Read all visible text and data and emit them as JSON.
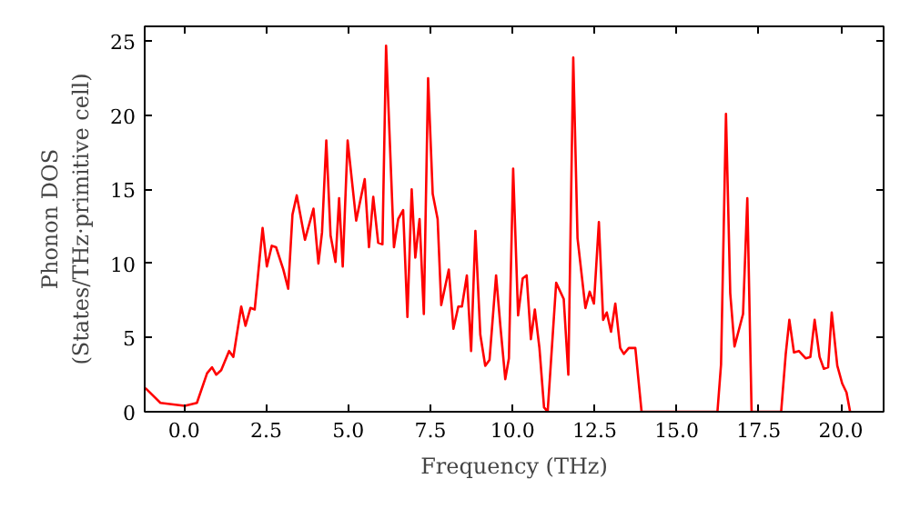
{
  "chart_data": {
    "type": "line",
    "xlabel": "Frequency (THz)",
    "ylabel": "Phonon DOS\n(States/THz·primitive cell)",
    "xlim": [
      -1.2,
      21.3
    ],
    "ylim": [
      0,
      26
    ],
    "xticks": [
      {
        "value": 0,
        "label": "0.0"
      },
      {
        "value": 2.5,
        "label": "2.5"
      },
      {
        "value": 5,
        "label": "5.0"
      },
      {
        "value": 7.5,
        "label": "7.5"
      },
      {
        "value": 10,
        "label": "10.0"
      },
      {
        "value": 12.5,
        "label": "12.5"
      },
      {
        "value": 15,
        "label": "15.0"
      },
      {
        "value": 17.5,
        "label": "17.5"
      },
      {
        "value": 20,
        "label": "20.0"
      }
    ],
    "yticks": [
      0,
      5,
      10,
      15,
      20,
      25
    ],
    "grid": false,
    "marker": "none",
    "line_style": "solid",
    "series": [
      {
        "color": "#ff0000",
        "x": [
          -1.18,
          -0.72,
          0.02,
          0.39,
          0.7,
          0.85,
          0.98,
          1.13,
          1.37,
          1.5,
          1.74,
          1.87,
          2.02,
          2.15,
          2.39,
          2.52,
          2.67,
          2.8,
          3.02,
          3.17,
          3.3,
          3.43,
          3.68,
          3.94,
          4.09,
          4.2,
          4.33,
          4.46,
          4.61,
          4.72,
          4.83,
          4.98,
          5.24,
          5.5,
          5.63,
          5.76,
          5.91,
          6.04,
          6.15,
          6.39,
          6.52,
          6.67,
          6.8,
          6.93,
          7.04,
          7.17,
          7.3,
          7.43,
          7.57,
          7.72,
          7.83,
          8.06,
          8.2,
          8.35,
          8.46,
          8.61,
          8.74,
          8.87,
          9.02,
          9.17,
          9.3,
          9.5,
          9.63,
          9.78,
          9.89,
          10.02,
          10.17,
          10.31,
          10.43,
          10.56,
          10.68,
          10.82,
          10.96,
          11.07,
          11.33,
          11.56,
          11.7,
          11.85,
          11.98,
          12.22,
          12.35,
          12.48,
          12.63,
          12.76,
          12.87,
          13.0,
          13.13,
          13.28,
          13.39,
          13.54,
          13.74,
          13.93,
          16.24,
          16.35,
          16.5,
          16.63,
          16.76,
          17.02,
          17.15,
          17.28,
          18.18,
          18.32,
          18.43,
          18.57,
          18.72,
          18.93,
          19.07,
          19.2,
          19.35,
          19.48,
          19.61,
          19.72,
          19.89,
          20.04,
          20.17,
          20.28
        ],
        "values": [
          1.6,
          0.6,
          0.4,
          0.6,
          2.6,
          3.0,
          2.5,
          2.8,
          4.1,
          3.7,
          7.1,
          5.8,
          7.0,
          6.9,
          12.4,
          9.8,
          11.2,
          11.1,
          9.6,
          8.3,
          13.3,
          14.6,
          11.6,
          13.7,
          10.0,
          12.1,
          18.3,
          11.9,
          10.1,
          14.4,
          9.8,
          18.3,
          12.9,
          15.7,
          11.1,
          14.5,
          11.4,
          11.3,
          24.7,
          11.1,
          13.0,
          13.6,
          6.4,
          15.0,
          10.4,
          13.0,
          6.6,
          22.5,
          14.7,
          13.0,
          7.2,
          9.6,
          5.6,
          7.1,
          7.1,
          9.2,
          4.1,
          12.2,
          5.2,
          3.1,
          3.5,
          9.2,
          5.8,
          2.2,
          3.6,
          16.4,
          6.5,
          9.0,
          9.2,
          4.9,
          6.9,
          4.3,
          0.3,
          0.0,
          8.7,
          7.6,
          2.5,
          23.9,
          11.7,
          7.0,
          8.1,
          7.3,
          12.8,
          6.2,
          6.7,
          5.4,
          7.3,
          4.3,
          3.9,
          4.3,
          4.3,
          0.0,
          0.0,
          3.2,
          20.1,
          8.0,
          4.4,
          6.6,
          14.4,
          0.0,
          0.0,
          3.9,
          6.2,
          4.0,
          4.1,
          3.6,
          3.7,
          6.2,
          3.7,
          2.9,
          3.0,
          6.7,
          3.1,
          1.9,
          1.3,
          0.0
        ]
      }
    ]
  }
}
